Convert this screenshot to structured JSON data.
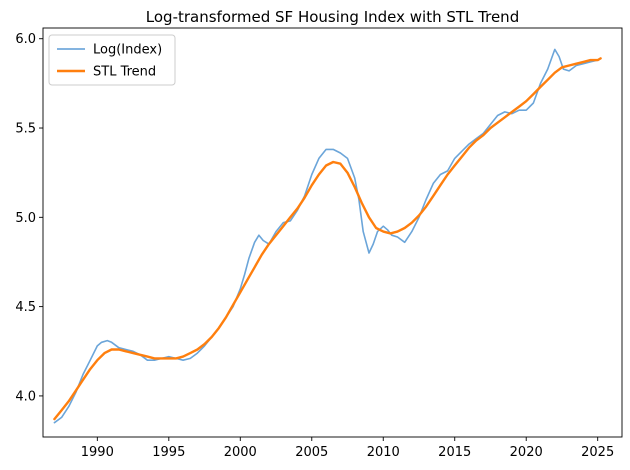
{
  "chart_data": {
    "type": "line",
    "title": "Log-transformed SF Housing Index with STL Trend",
    "xlabel": "",
    "ylabel": "",
    "xlim": [
      1986.2,
      2026.7
    ],
    "ylim": [
      3.77,
      6.06
    ],
    "x_ticks": [
      1990,
      1995,
      2000,
      2005,
      2010,
      2015,
      2020,
      2025
    ],
    "y_ticks": [
      4.0,
      4.5,
      5.0,
      5.5,
      6.0
    ],
    "x_tick_labels": [
      "1990",
      "1995",
      "2000",
      "2005",
      "2010",
      "2015",
      "2020",
      "2025"
    ],
    "y_tick_labels": [
      "4.0",
      "4.5",
      "5.0",
      "5.5",
      "6.0"
    ],
    "grid": false,
    "legend": {
      "position": "top-left"
    },
    "series": [
      {
        "name": "Log(Index)",
        "color": "#5b9bd5",
        "x": [
          1987.0,
          1987.5,
          1988.0,
          1988.5,
          1989.0,
          1989.5,
          1990.0,
          1990.3,
          1990.7,
          1991.0,
          1991.5,
          1992.0,
          1992.5,
          1993.0,
          1993.5,
          1994.0,
          1994.5,
          1995.0,
          1995.5,
          1996.0,
          1996.5,
          1997.0,
          1997.5,
          1998.0,
          1998.5,
          1999.0,
          1999.5,
          2000.0,
          2000.3,
          2000.6,
          2001.0,
          2001.3,
          2001.6,
          2002.0,
          2002.5,
          2003.0,
          2003.5,
          2004.0,
          2004.5,
          2005.0,
          2005.5,
          2006.0,
          2006.5,
          2007.0,
          2007.5,
          2008.0,
          2008.3,
          2008.6,
          2009.0,
          2009.3,
          2009.6,
          2010.0,
          2010.3,
          2010.6,
          2011.0,
          2011.5,
          2012.0,
          2012.5,
          2013.0,
          2013.5,
          2014.0,
          2014.5,
          2015.0,
          2015.5,
          2016.0,
          2016.5,
          2017.0,
          2017.5,
          2018.0,
          2018.5,
          2019.0,
          2019.5,
          2020.0,
          2020.5,
          2021.0,
          2021.5,
          2022.0,
          2022.3,
          2022.6,
          2023.0,
          2023.5,
          2024.0,
          2024.5,
          2025.0,
          2025.2
        ],
        "values": [
          3.85,
          3.88,
          3.94,
          4.02,
          4.12,
          4.2,
          4.28,
          4.3,
          4.31,
          4.3,
          4.27,
          4.26,
          4.25,
          4.23,
          4.2,
          4.2,
          4.21,
          4.22,
          4.21,
          4.2,
          4.21,
          4.24,
          4.28,
          4.33,
          4.38,
          4.44,
          4.5,
          4.6,
          4.68,
          4.77,
          4.86,
          4.9,
          4.87,
          4.85,
          4.92,
          4.97,
          4.98,
          5.04,
          5.12,
          5.24,
          5.33,
          5.38,
          5.38,
          5.36,
          5.33,
          5.22,
          5.1,
          4.92,
          4.8,
          4.85,
          4.92,
          4.95,
          4.93,
          4.9,
          4.89,
          4.86,
          4.92,
          5.0,
          5.1,
          5.19,
          5.24,
          5.26,
          5.33,
          5.37,
          5.41,
          5.44,
          5.47,
          5.52,
          5.57,
          5.59,
          5.58,
          5.6,
          5.6,
          5.64,
          5.75,
          5.83,
          5.94,
          5.9,
          5.83,
          5.82,
          5.85,
          5.86,
          5.87,
          5.88,
          5.89
        ]
      },
      {
        "name": "STL Trend",
        "color": "#ff7f0e",
        "x": [
          1987.0,
          1987.5,
          1988.0,
          1988.5,
          1989.0,
          1989.5,
          1990.0,
          1990.5,
          1991.0,
          1991.5,
          1992.0,
          1992.5,
          1993.0,
          1993.5,
          1994.0,
          1994.5,
          1995.0,
          1995.5,
          1996.0,
          1996.5,
          1997.0,
          1997.5,
          1998.0,
          1998.5,
          1999.0,
          1999.5,
          2000.0,
          2000.5,
          2001.0,
          2001.5,
          2002.0,
          2002.5,
          2003.0,
          2003.5,
          2004.0,
          2004.5,
          2005.0,
          2005.5,
          2006.0,
          2006.5,
          2007.0,
          2007.5,
          2008.0,
          2008.5,
          2009.0,
          2009.5,
          2010.0,
          2010.5,
          2011.0,
          2011.5,
          2012.0,
          2012.5,
          2013.0,
          2013.5,
          2014.0,
          2014.5,
          2015.0,
          2015.5,
          2016.0,
          2016.5,
          2017.0,
          2017.5,
          2018.0,
          2018.5,
          2019.0,
          2019.5,
          2020.0,
          2020.5,
          2021.0,
          2021.5,
          2022.0,
          2022.5,
          2023.0,
          2023.5,
          2024.0,
          2024.5,
          2025.0,
          2025.2
        ],
        "values": [
          3.87,
          3.92,
          3.97,
          4.03,
          4.09,
          4.15,
          4.2,
          4.24,
          4.26,
          4.26,
          4.25,
          4.24,
          4.23,
          4.22,
          4.21,
          4.21,
          4.21,
          4.21,
          4.22,
          4.24,
          4.26,
          4.29,
          4.33,
          4.38,
          4.44,
          4.51,
          4.58,
          4.65,
          4.72,
          4.79,
          4.85,
          4.9,
          4.95,
          5.0,
          5.05,
          5.11,
          5.18,
          5.24,
          5.29,
          5.31,
          5.3,
          5.25,
          5.17,
          5.08,
          5.0,
          4.94,
          4.92,
          4.91,
          4.92,
          4.94,
          4.97,
          5.01,
          5.06,
          5.12,
          5.18,
          5.24,
          5.29,
          5.34,
          5.39,
          5.43,
          5.46,
          5.5,
          5.53,
          5.56,
          5.59,
          5.62,
          5.65,
          5.69,
          5.73,
          5.77,
          5.81,
          5.84,
          5.85,
          5.86,
          5.87,
          5.88,
          5.88,
          5.89
        ]
      }
    ]
  }
}
